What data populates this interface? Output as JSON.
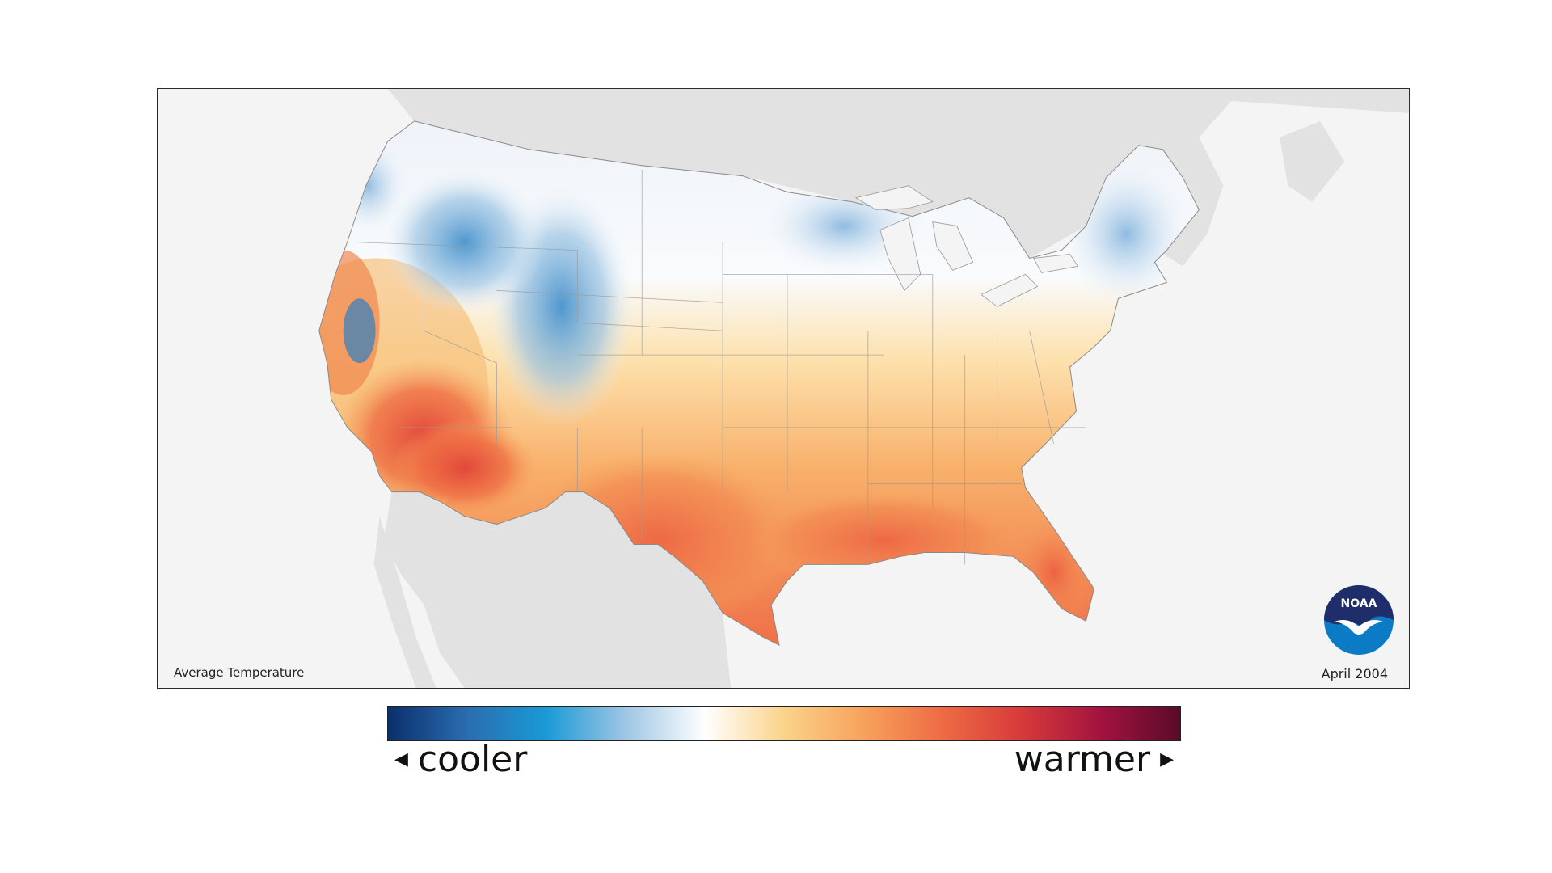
{
  "map": {
    "title": "Average Temperature",
    "date": "April 2004",
    "logo_text": "NOAA"
  },
  "legend": {
    "low_label": "cooler",
    "high_label": "warmer",
    "low_arrow": "◀",
    "high_arrow": "▶",
    "colors": [
      "#0b2f6b",
      "#2a6db0",
      "#1a9ad6",
      "#9fc6e4",
      "#ffffff",
      "#fbd38a",
      "#f7a25c",
      "#ee6b44",
      "#d73a3a",
      "#a3133f",
      "#5a0a2a"
    ]
  },
  "colors": {
    "land_background": "#e2e2e2",
    "ocean": "#f4f4f4",
    "frame": "#2a2a2a",
    "noaa_blue": "#0a7bc4",
    "noaa_navy": "#1f2e6b"
  }
}
